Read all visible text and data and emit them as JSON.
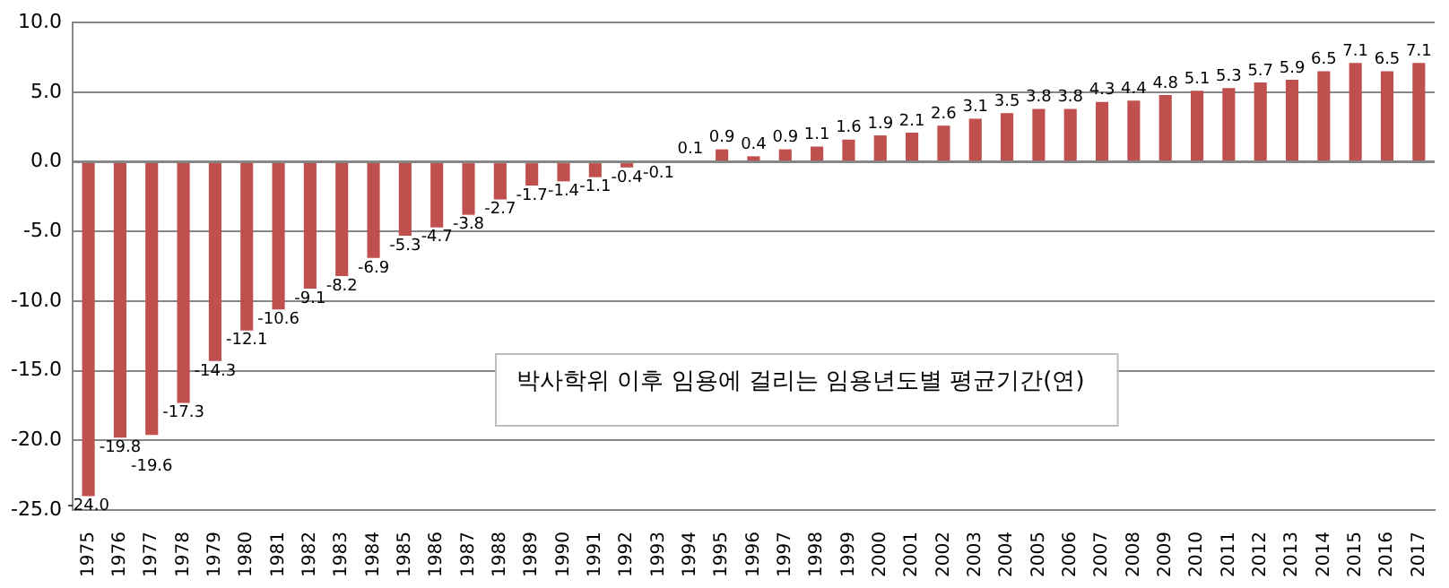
{
  "chart_data": {
    "type": "bar",
    "categories": [
      "1975",
      "1976",
      "1977",
      "1978",
      "1979",
      "1980",
      "1981",
      "1982",
      "1983",
      "1984",
      "1985",
      "1986",
      "1987",
      "1988",
      "1989",
      "1990",
      "1991",
      "1992",
      "1993",
      "1994",
      "1995",
      "1996",
      "1997",
      "1998",
      "1999",
      "2000",
      "2001",
      "2002",
      "2003",
      "2004",
      "2005",
      "2006",
      "2007",
      "2008",
      "2009",
      "2010",
      "2011",
      "2012",
      "2013",
      "2014",
      "2015",
      "2016",
      "2017"
    ],
    "values": [
      -24.0,
      -19.8,
      -19.6,
      -17.3,
      -14.3,
      -12.1,
      -10.6,
      -9.1,
      -8.2,
      -6.9,
      -5.3,
      -4.7,
      -3.8,
      -2.7,
      -1.7,
      -1.4,
      -1.1,
      -0.4,
      -0.1,
      0.1,
      0.9,
      0.4,
      0.9,
      1.1,
      1.6,
      1.9,
      2.1,
      2.6,
      3.1,
      3.5,
      3.8,
      3.8,
      4.3,
      4.4,
      4.8,
      5.1,
      5.3,
      5.7,
      5.9,
      6.5,
      7.1,
      6.5,
      7.1
    ],
    "value_labels": [
      "-24.0",
      "-19.8",
      "-19.6",
      "-17.3",
      "-14.3",
      "-12.1",
      "-10.6",
      "-9.1",
      "-8.2",
      "-6.9",
      "-5.3",
      "-4.7",
      "-3.8",
      "-2.7",
      "-1.7",
      "-1.4",
      "-1.1",
      "-0.4",
      "-0.1",
      "0.1",
      "0.9",
      "0.4",
      "0.9",
      "1.1",
      "1.6",
      "1.9",
      "2.1",
      "2.6",
      "3.1",
      "3.5",
      "3.8",
      "3.8",
      "4.3",
      "4.4",
      "4.8",
      "5.1",
      "5.3",
      "5.7",
      "5.9",
      "6.5",
      "7.1",
      "6.5",
      "7.1"
    ],
    "color": "#c0504d",
    "grid": "y",
    "legend": false,
    "ylim": [
      -25,
      10
    ],
    "yticks": [
      {
        "value": -25,
        "label": "-25.0"
      },
      {
        "value": -20,
        "label": "-20.0"
      },
      {
        "value": -15,
        "label": "-15.0"
      },
      {
        "value": -10,
        "label": "-10.0"
      },
      {
        "value": -5,
        "label": "-5.0"
      },
      {
        "value": 0,
        "label": "0.0"
      },
      {
        "value": 5,
        "label": "5.0"
      },
      {
        "value": 10,
        "label": "10.0"
      }
    ],
    "annotations": [
      "박사학위 이후 임용에 걸리는 임용년도별 평균기간(연)"
    ]
  }
}
